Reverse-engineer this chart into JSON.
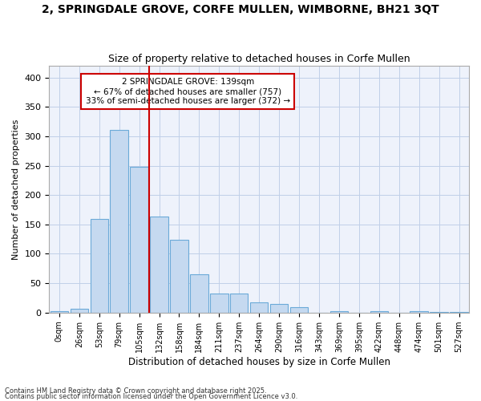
{
  "title_line1": "2, SPRINGDALE GROVE, CORFE MULLEN, WIMBORNE, BH21 3QT",
  "title_line2": "Size of property relative to detached houses in Corfe Mullen",
  "xlabel": "Distribution of detached houses by size in Corfe Mullen",
  "ylabel": "Number of detached properties",
  "bar_color": "#c5d9f0",
  "bar_edge_color": "#6baad8",
  "background_color": "#eef2fb",
  "grid_color": "#c0cfe8",
  "annotation_box_color": "#cc0000",
  "annotation_line_color": "#cc0000",
  "categories": [
    "0sqm",
    "26sqm",
    "53sqm",
    "79sqm",
    "105sqm",
    "132sqm",
    "158sqm",
    "184sqm",
    "211sqm",
    "237sqm",
    "264sqm",
    "290sqm",
    "316sqm",
    "343sqm",
    "369sqm",
    "395sqm",
    "422sqm",
    "448sqm",
    "474sqm",
    "501sqm",
    "527sqm"
  ],
  "values": [
    3,
    7,
    160,
    311,
    248,
    163,
    124,
    65,
    32,
    32,
    17,
    15,
    9,
    0,
    2,
    0,
    3,
    0,
    2,
    1,
    1
  ],
  "annotation_text_line1": "2 SPRINGDALE GROVE: 139sqm",
  "annotation_text_line2": "← 67% of detached houses are smaller (757)",
  "annotation_text_line3": "33% of semi-detached houses are larger (372) →",
  "vline_bin": 5,
  "footnote_line1": "Contains HM Land Registry data © Crown copyright and database right 2025.",
  "footnote_line2": "Contains public sector information licensed under the Open Government Licence v3.0.",
  "ylim": [
    0,
    420
  ],
  "yticks": [
    0,
    50,
    100,
    150,
    200,
    250,
    300,
    350,
    400
  ]
}
